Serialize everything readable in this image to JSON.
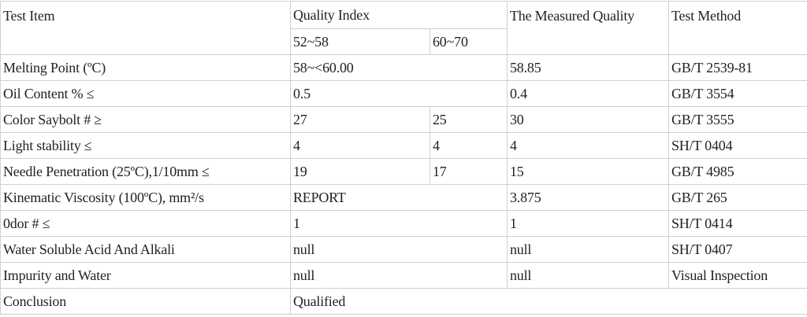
{
  "header": {
    "test_item": "Test Item",
    "quality_index": "Quality Index",
    "grade_a": "52~58",
    "grade_b": "60~70",
    "measured": "The Measured Quality",
    "method": "Test Method"
  },
  "rows": [
    {
      "item": "Melting Point (ºC)",
      "index": "58~<60.00",
      "measured": "58.85",
      "method": "GB/T 2539-81"
    },
    {
      "item": "Oil Content % ≤",
      "index": "0.5",
      "measured": "0.4",
      "method": "GB/T 3554"
    },
    {
      "item": "Color Saybolt # ≥",
      "a": "27",
      "b": "25",
      "measured": "30",
      "method": "GB/T 3555"
    },
    {
      "item": "Light stability ≤",
      "a": "4",
      "b": "4",
      "measured": "4",
      "method": "SH/T 0404"
    },
    {
      "item": "Needle Penetration (25ºC),1/10mm ≤",
      "a": "19",
      "b": "17",
      "measured": "15",
      "method": "GB/T 4985"
    },
    {
      "item": "Kinematic Viscosity (100ºC), mm²/s",
      "index": "REPORT",
      "measured": "3.875",
      "method": "GB/T 265"
    },
    {
      "item": "0dor # ≤",
      "index": "1",
      "measured": "1",
      "method": "SH/T 0414"
    },
    {
      "item": "Water Soluble Acid And Alkali",
      "index": "null",
      "measured": "null",
      "method": "SH/T 0407"
    },
    {
      "item": "Impurity and Water",
      "index": "null",
      "measured": "null",
      "method": "Visual Inspection"
    }
  ],
  "conclusion": {
    "label": "Conclusion",
    "value": "Qualified"
  }
}
